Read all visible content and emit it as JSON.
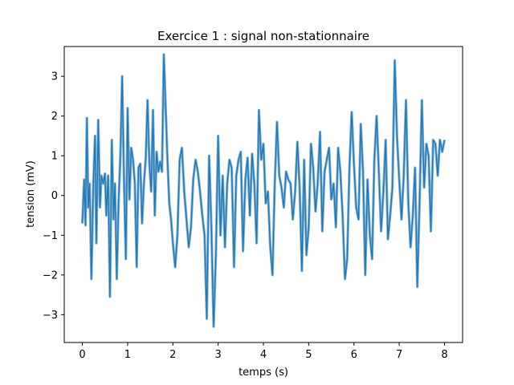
{
  "chart_data": {
    "type": "line",
    "title": "Exercice 1 : signal non-stationnaire",
    "xlabel": "temps (s)",
    "ylabel": "tension (mV)",
    "xlim": [
      -0.4,
      8.4
    ],
    "ylim": [
      -3.7,
      3.75
    ],
    "xticks": [
      0,
      1,
      2,
      3,
      4,
      5,
      6,
      7,
      8
    ],
    "xtick_labels": [
      "0",
      "1",
      "2",
      "3",
      "4",
      "5",
      "6",
      "7",
      "8"
    ],
    "yticks": [
      -3,
      -2,
      -1,
      0,
      1,
      2,
      3
    ],
    "ytick_labels": [
      "−3",
      "−2",
      "−1",
      "0",
      "1",
      "2",
      "3"
    ],
    "grid": false,
    "line_color": "#1f77b4",
    "series": [
      {
        "x": [
          0.0,
          0.04,
          0.07,
          0.1,
          0.13,
          0.16,
          0.2,
          0.24,
          0.28,
          0.31,
          0.35,
          0.39,
          0.42,
          0.46,
          0.5,
          0.53,
          0.57,
          0.61,
          0.65,
          0.69,
          0.72,
          0.76,
          0.8,
          0.84,
          0.88,
          0.92,
          0.96,
          1.0,
          1.04,
          1.08,
          1.12,
          1.16,
          1.2,
          1.24,
          1.28,
          1.32,
          1.36,
          1.4,
          1.44,
          1.48,
          1.52,
          1.56,
          1.6,
          1.64,
          1.68,
          1.72,
          1.76,
          1.8,
          1.84,
          1.88,
          1.92,
          1.96,
          2.0,
          2.05,
          2.1,
          2.15,
          2.2,
          2.25,
          2.3,
          2.35,
          2.4,
          2.45,
          2.5,
          2.55,
          2.6,
          2.65,
          2.7,
          2.75,
          2.8,
          2.85,
          2.9,
          2.95,
          3.0,
          3.05,
          3.1,
          3.15,
          3.2,
          3.25,
          3.3,
          3.35,
          3.4,
          3.45,
          3.5,
          3.55,
          3.6,
          3.65,
          3.7,
          3.75,
          3.8,
          3.85,
          3.9,
          3.95,
          4.0,
          4.05,
          4.1,
          4.15,
          4.2,
          4.25,
          4.3,
          4.35,
          4.4,
          4.45,
          4.5,
          4.55,
          4.6,
          4.65,
          4.7,
          4.75,
          4.8,
          4.85,
          4.9,
          4.95,
          5.0,
          5.05,
          5.1,
          5.15,
          5.2,
          5.25,
          5.3,
          5.35,
          5.4,
          5.45,
          5.5,
          5.55,
          5.6,
          5.65,
          5.7,
          5.75,
          5.8,
          5.85,
          5.9,
          5.95,
          6.0,
          6.05,
          6.1,
          6.15,
          6.2,
          6.25,
          6.3,
          6.35,
          6.4,
          6.45,
          6.5,
          6.55,
          6.6,
          6.65,
          6.7,
          6.75,
          6.8,
          6.85,
          6.9,
          6.95,
          7.0,
          7.05,
          7.1,
          7.15,
          7.2,
          7.25,
          7.3,
          7.35,
          7.4,
          7.45,
          7.5,
          7.55,
          7.6,
          7.65,
          7.7,
          7.75,
          7.8,
          7.85,
          7.9,
          7.95,
          8.0
        ],
        "y": [
          -0.7,
          0.4,
          -0.75,
          1.95,
          -0.3,
          0.3,
          -2.1,
          0.2,
          1.5,
          -1.2,
          1.9,
          -0.3,
          0.5,
          0.3,
          0.55,
          -0.5,
          0.5,
          -2.55,
          1.4,
          -0.6,
          0.3,
          -2.1,
          -0.2,
          1.0,
          3.0,
          0.4,
          -1.6,
          2.2,
          -0.1,
          1.2,
          0.9,
          0.3,
          -1.8,
          0.7,
          0.8,
          -0.7,
          0.3,
          0.95,
          2.4,
          0.8,
          0.1,
          2.15,
          -0.5,
          1.1,
          0.6,
          0.85,
          0.6,
          3.55,
          2.2,
          0.9,
          -0.2,
          -0.6,
          -1.2,
          -1.8,
          -1.0,
          0.9,
          1.2,
          0.1,
          -0.6,
          -1.3,
          -0.8,
          0.4,
          0.9,
          0.6,
          0.1,
          -0.5,
          -1.0,
          -3.1,
          1.0,
          -0.8,
          -3.3,
          -1.5,
          1.5,
          -1.0,
          0.5,
          -1.3,
          0.3,
          0.9,
          0.7,
          -1.8,
          0.5,
          0.9,
          1.1,
          -1.4,
          0.4,
          0.95,
          -0.5,
          1.05,
          0.3,
          -1.2,
          2.15,
          0.9,
          1.3,
          -0.2,
          0.1,
          -1.3,
          -2.0,
          0.3,
          1.85,
          0.5,
          0.2,
          -0.3,
          0.6,
          0.4,
          0.3,
          -0.6,
          0.1,
          1.35,
          0.2,
          -1.9,
          0.9,
          -1.5,
          -0.8,
          1.3,
          0.7,
          -0.4,
          0.3,
          1.6,
          -0.9,
          0.6,
          0.9,
          1.2,
          -0.1,
          0.3,
          -0.8,
          1.2,
          0.6,
          -0.5,
          -2.1,
          -1.6,
          0.7,
          2.1,
          0.8,
          -0.3,
          -0.6,
          1.8,
          0.6,
          -2.0,
          0.4,
          -1.0,
          -1.6,
          0.9,
          2.0,
          0.6,
          -0.9,
          0.1,
          1.4,
          -1.1,
          -0.5,
          0.2,
          3.4,
          1.5,
          0.4,
          -0.6,
          0.5,
          2.4,
          -0.2,
          -1.3,
          -0.5,
          0.7,
          -2.3,
          -0.1,
          2.4,
          0.2,
          1.3,
          1.0,
          -0.9,
          1.4,
          1.3,
          0.5,
          1.4,
          1.1,
          1.4
        ]
      }
    ]
  }
}
